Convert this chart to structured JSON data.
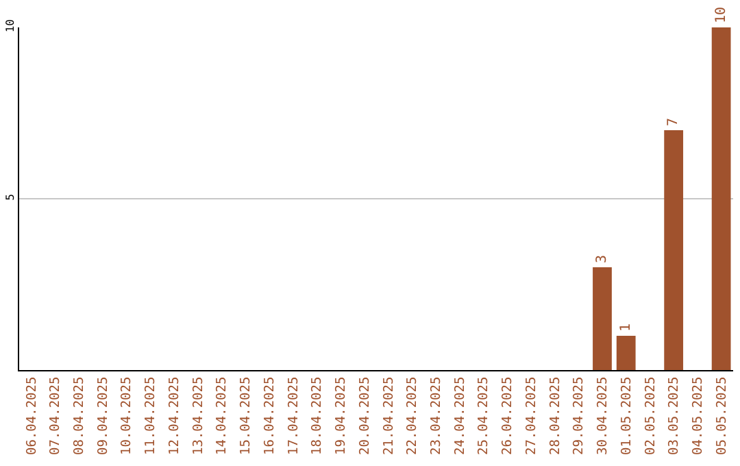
{
  "chart_data": {
    "type": "bar",
    "categories": [
      "06.04.2025",
      "07.04.2025",
      "08.04.2025",
      "09.04.2025",
      "10.04.2025",
      "11.04.2025",
      "12.04.2025",
      "13.04.2025",
      "14.04.2025",
      "15.04.2025",
      "16.04.2025",
      "17.04.2025",
      "18.04.2025",
      "19.04.2025",
      "20.04.2025",
      "21.04.2025",
      "22.04.2025",
      "23.04.2025",
      "24.04.2025",
      "25.04.2025",
      "26.04.2025",
      "27.04.2025",
      "28.04.2025",
      "29.04.2025",
      "30.04.2025",
      "01.05.2025",
      "02.05.2025",
      "03.05.2025",
      "04.05.2025",
      "05.05.2025"
    ],
    "values": [
      0,
      0,
      0,
      0,
      0,
      0,
      0,
      0,
      0,
      0,
      0,
      0,
      0,
      0,
      0,
      0,
      0,
      0,
      0,
      0,
      0,
      0,
      0,
      0,
      3,
      1,
      0,
      7,
      0,
      10
    ],
    "value_labels": [
      null,
      null,
      null,
      null,
      null,
      null,
      null,
      null,
      null,
      null,
      null,
      null,
      null,
      null,
      null,
      null,
      null,
      null,
      null,
      null,
      null,
      null,
      null,
      null,
      "3",
      "1",
      null,
      "7",
      null,
      "10"
    ],
    "color": "#a0522d",
    "ylim": [
      0,
      10
    ],
    "yticks": [
      5,
      10
    ],
    "grid": "y"
  }
}
